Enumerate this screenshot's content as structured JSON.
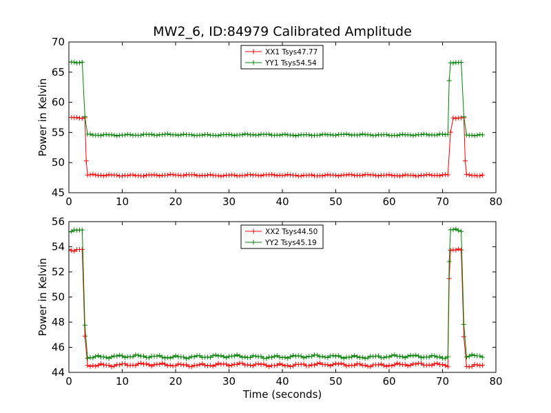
{
  "title": "MW2_6, ID:84979 Calibrated Amplitude",
  "chart_data": [
    {
      "type": "line",
      "xlabel": "",
      "ylabel": "Power in Kelvin",
      "xlim": [
        0,
        80
      ],
      "ylim": [
        45,
        70
      ],
      "xticks": [
        0,
        10,
        20,
        30,
        40,
        50,
        60,
        70,
        80
      ],
      "yticks": [
        45,
        50,
        55,
        60,
        65,
        70
      ],
      "grid": false,
      "legend_position": "top-center",
      "series": [
        {
          "name": "XX1 Tsys47.77",
          "color": "#ff0000",
          "segments": [
            {
              "x0": 0.0,
              "x1": 3.0,
              "v": 57.4
            },
            {
              "x0": 3.5,
              "x1": 71.0,
              "v": 47.9
            },
            {
              "x0": 72.0,
              "x1": 74.0,
              "v": 57.4
            },
            {
              "x0": 74.5,
              "x1": 77.5,
              "v": 47.9
            }
          ]
        },
        {
          "name": "YY1 Tsys54.54",
          "color": "#008000",
          "segments": [
            {
              "x0": 0.0,
              "x1": 2.5,
              "v": 66.6
            },
            {
              "x0": 3.5,
              "x1": 71.0,
              "v": 54.6
            },
            {
              "x0": 71.5,
              "x1": 73.5,
              "v": 66.6
            },
            {
              "x0": 74.5,
              "x1": 77.5,
              "v": 54.6
            }
          ]
        }
      ]
    },
    {
      "type": "line",
      "xlabel": "Time (seconds)",
      "ylabel": "Power in Kelvin",
      "xlim": [
        0,
        80
      ],
      "ylim": [
        44,
        56
      ],
      "xticks": [
        0,
        10,
        20,
        30,
        40,
        50,
        60,
        70,
        80
      ],
      "yticks": [
        44,
        46,
        48,
        50,
        52,
        54,
        56
      ],
      "grid": false,
      "legend_position": "top-center",
      "series": [
        {
          "name": "XX2 Tsys44.50",
          "color": "#ff0000",
          "segments": [
            {
              "x0": 0.0,
              "x1": 2.5,
              "v": 53.75
            },
            {
              "x0": 3.5,
              "x1": 71.0,
              "v": 44.6
            },
            {
              "x0": 71.5,
              "x1": 73.5,
              "v": 53.75
            },
            {
              "x0": 74.5,
              "x1": 77.5,
              "v": 44.55
            }
          ]
        },
        {
          "name": "YY2 Tsys45.19",
          "color": "#008000",
          "segments": [
            {
              "x0": 0.0,
              "x1": 2.5,
              "v": 55.3
            },
            {
              "x0": 3.5,
              "x1": 71.0,
              "v": 45.25
            },
            {
              "x0": 71.5,
              "x1": 73.5,
              "v": 55.35
            },
            {
              "x0": 74.5,
              "x1": 77.5,
              "v": 45.3
            }
          ]
        }
      ]
    }
  ]
}
